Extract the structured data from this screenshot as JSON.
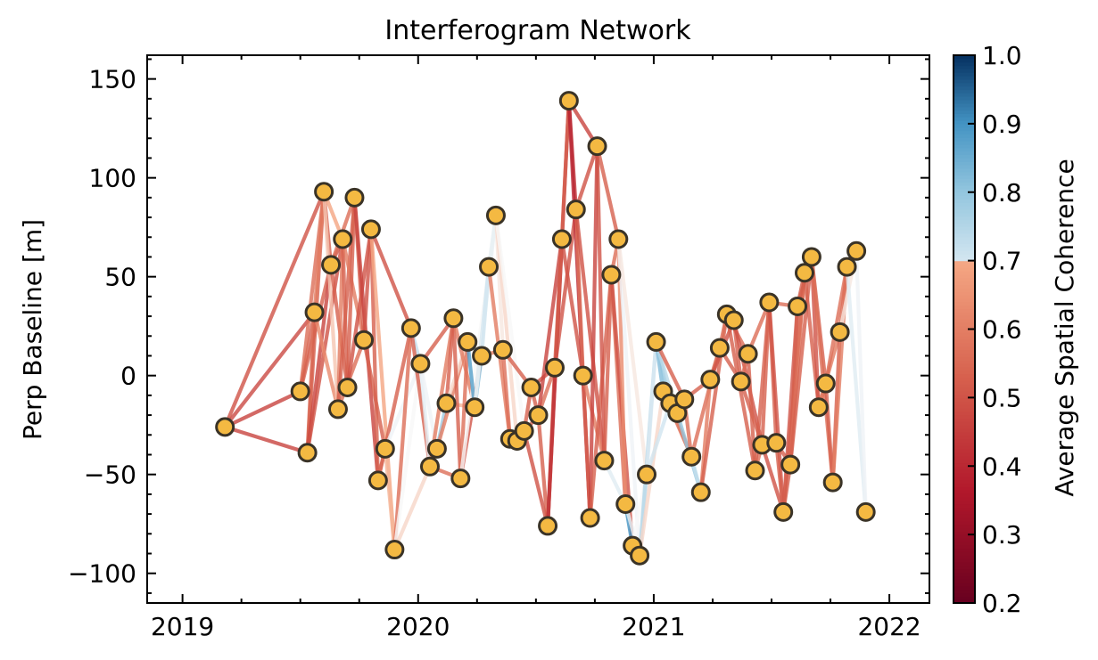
{
  "chart_data": {
    "type": "network",
    "title": "Interferogram Network",
    "ylabel": "Perp Baseline [m]",
    "xlabel": "",
    "x_range": [
      2018.85,
      2022.17
    ],
    "ylim": [
      -115,
      162
    ],
    "x_ticks": [
      2019,
      2020,
      2021,
      2022
    ],
    "x_tick_labels": [
      "2019",
      "2020",
      "2021",
      "2022"
    ],
    "y_ticks": [
      150,
      100,
      50,
      0,
      -50,
      -100
    ],
    "y_tick_labels": [
      "150",
      "100",
      "50",
      "0",
      "−50",
      "−100"
    ],
    "colorbar": {
      "label": "Average Spatial Coherence",
      "range": [
        0.2,
        1.0
      ],
      "ticks": [
        1.0,
        0.9,
        0.8,
        0.7,
        0.6,
        0.5,
        0.4,
        0.3,
        0.2
      ],
      "tick_labels": [
        "1.0",
        "0.9",
        "0.8",
        "0.7",
        "0.6",
        "0.5",
        "0.4",
        "0.3",
        "0.2"
      ],
      "colormap": "RdBu",
      "discontinuity_at": 0.7
    },
    "marker_color": "#f4b942",
    "marker_edge_color": "#3a3327",
    "nodes": [
      {
        "date": 2019.18,
        "bperp": -26
      },
      {
        "date": 2019.5,
        "bperp": -8
      },
      {
        "date": 2019.53,
        "bperp": -39
      },
      {
        "date": 2019.56,
        "bperp": 32
      },
      {
        "date": 2019.6,
        "bperp": 93
      },
      {
        "date": 2019.63,
        "bperp": 56
      },
      {
        "date": 2019.66,
        "bperp": -17
      },
      {
        "date": 2019.68,
        "bperp": 69
      },
      {
        "date": 2019.7,
        "bperp": -6
      },
      {
        "date": 2019.73,
        "bperp": 90
      },
      {
        "date": 2019.77,
        "bperp": 18
      },
      {
        "date": 2019.8,
        "bperp": 74
      },
      {
        "date": 2019.83,
        "bperp": -53
      },
      {
        "date": 2019.86,
        "bperp": -37
      },
      {
        "date": 2019.9,
        "bperp": -88
      },
      {
        "date": 2019.97,
        "bperp": 24
      },
      {
        "date": 2020.01,
        "bperp": 6
      },
      {
        "date": 2020.05,
        "bperp": -46
      },
      {
        "date": 2020.08,
        "bperp": -37
      },
      {
        "date": 2020.12,
        "bperp": -14
      },
      {
        "date": 2020.15,
        "bperp": 29
      },
      {
        "date": 2020.18,
        "bperp": -52
      },
      {
        "date": 2020.21,
        "bperp": 17
      },
      {
        "date": 2020.24,
        "bperp": -16
      },
      {
        "date": 2020.27,
        "bperp": 10
      },
      {
        "date": 2020.3,
        "bperp": 55
      },
      {
        "date": 2020.33,
        "bperp": 81
      },
      {
        "date": 2020.36,
        "bperp": 13
      },
      {
        "date": 2020.39,
        "bperp": -32
      },
      {
        "date": 2020.42,
        "bperp": -33
      },
      {
        "date": 2020.45,
        "bperp": -28
      },
      {
        "date": 2020.48,
        "bperp": -6
      },
      {
        "date": 2020.51,
        "bperp": -20
      },
      {
        "date": 2020.55,
        "bperp": -76
      },
      {
        "date": 2020.58,
        "bperp": 4
      },
      {
        "date": 2020.61,
        "bperp": 69
      },
      {
        "date": 2020.64,
        "bperp": 139
      },
      {
        "date": 2020.67,
        "bperp": 84
      },
      {
        "date": 2020.7,
        "bperp": 0
      },
      {
        "date": 2020.73,
        "bperp": -72
      },
      {
        "date": 2020.76,
        "bperp": 116
      },
      {
        "date": 2020.79,
        "bperp": -43
      },
      {
        "date": 2020.82,
        "bperp": 51
      },
      {
        "date": 2020.85,
        "bperp": 69
      },
      {
        "date": 2020.88,
        "bperp": -65
      },
      {
        "date": 2020.91,
        "bperp": -86
      },
      {
        "date": 2020.94,
        "bperp": -91
      },
      {
        "date": 2020.97,
        "bperp": -50
      },
      {
        "date": 2021.01,
        "bperp": 17
      },
      {
        "date": 2021.04,
        "bperp": -8
      },
      {
        "date": 2021.07,
        "bperp": -14
      },
      {
        "date": 2021.1,
        "bperp": -19
      },
      {
        "date": 2021.13,
        "bperp": -12
      },
      {
        "date": 2021.16,
        "bperp": -41
      },
      {
        "date": 2021.2,
        "bperp": -59
      },
      {
        "date": 2021.24,
        "bperp": -2
      },
      {
        "date": 2021.28,
        "bperp": 14
      },
      {
        "date": 2021.31,
        "bperp": 31
      },
      {
        "date": 2021.34,
        "bperp": 28
      },
      {
        "date": 2021.37,
        "bperp": -3
      },
      {
        "date": 2021.4,
        "bperp": 11
      },
      {
        "date": 2021.43,
        "bperp": -48
      },
      {
        "date": 2021.46,
        "bperp": -35
      },
      {
        "date": 2021.49,
        "bperp": 37
      },
      {
        "date": 2021.52,
        "bperp": -34
      },
      {
        "date": 2021.55,
        "bperp": -69
      },
      {
        "date": 2021.58,
        "bperp": -45
      },
      {
        "date": 2021.61,
        "bperp": 35
      },
      {
        "date": 2021.64,
        "bperp": 52
      },
      {
        "date": 2021.67,
        "bperp": 60
      },
      {
        "date": 2021.7,
        "bperp": -16
      },
      {
        "date": 2021.73,
        "bperp": -4
      },
      {
        "date": 2021.76,
        "bperp": -54
      },
      {
        "date": 2021.79,
        "bperp": 22
      },
      {
        "date": 2021.82,
        "bperp": 55
      },
      {
        "date": 2021.86,
        "bperp": 63
      },
      {
        "date": 2021.9,
        "bperp": -69
      }
    ],
    "edges": [
      [
        0,
        1,
        0.36
      ],
      [
        0,
        2,
        0.36
      ],
      [
        0,
        3,
        0.37
      ],
      [
        0,
        4,
        0.38
      ],
      [
        1,
        3,
        0.4
      ],
      [
        1,
        4,
        0.42
      ],
      [
        1,
        5,
        0.4
      ],
      [
        2,
        3,
        0.42
      ],
      [
        2,
        4,
        0.4
      ],
      [
        2,
        5,
        0.36
      ],
      [
        2,
        7,
        0.38
      ],
      [
        3,
        4,
        0.44
      ],
      [
        3,
        6,
        0.46
      ],
      [
        4,
        5,
        0.4
      ],
      [
        4,
        6,
        0.54
      ],
      [
        4,
        7,
        0.5
      ],
      [
        5,
        7,
        0.38
      ],
      [
        5,
        8,
        0.4
      ],
      [
        5,
        9,
        0.42
      ],
      [
        6,
        7,
        0.44
      ],
      [
        6,
        9,
        0.4
      ],
      [
        6,
        10,
        0.42
      ],
      [
        7,
        8,
        0.4
      ],
      [
        7,
        10,
        0.44
      ],
      [
        8,
        9,
        0.4
      ],
      [
        8,
        11,
        0.38
      ],
      [
        9,
        10,
        0.4
      ],
      [
        9,
        12,
        0.36
      ],
      [
        10,
        11,
        0.38
      ],
      [
        10,
        13,
        0.4
      ],
      [
        11,
        12,
        0.4
      ],
      [
        11,
        14,
        0.5
      ],
      [
        11,
        15,
        0.38
      ],
      [
        12,
        13,
        0.46
      ],
      [
        12,
        15,
        0.4
      ],
      [
        13,
        14,
        0.52
      ],
      [
        13,
        16,
        0.62
      ],
      [
        14,
        15,
        0.42
      ],
      [
        14,
        16,
        0.6
      ],
      [
        14,
        17,
        0.56
      ],
      [
        15,
        16,
        0.72
      ],
      [
        15,
        17,
        0.4
      ],
      [
        16,
        17,
        0.65
      ],
      [
        16,
        18,
        0.62
      ],
      [
        16,
        20,
        0.4
      ],
      [
        17,
        18,
        0.8
      ],
      [
        17,
        20,
        0.44
      ],
      [
        17,
        21,
        0.42
      ],
      [
        18,
        19,
        0.78
      ],
      [
        18,
        22,
        0.44
      ],
      [
        19,
        20,
        0.4
      ],
      [
        19,
        22,
        0.56
      ],
      [
        19,
        23,
        0.52
      ],
      [
        20,
        21,
        0.4
      ],
      [
        20,
        23,
        0.44
      ],
      [
        21,
        22,
        0.42
      ],
      [
        21,
        24,
        0.38
      ],
      [
        21,
        26,
        0.6
      ],
      [
        22,
        23,
        0.88
      ],
      [
        22,
        24,
        0.86
      ],
      [
        23,
        24,
        0.82
      ],
      [
        23,
        25,
        0.7
      ],
      [
        23,
        26,
        0.64
      ],
      [
        24,
        25,
        0.7
      ],
      [
        24,
        27,
        0.44
      ],
      [
        25,
        26,
        0.64
      ],
      [
        25,
        28,
        0.44
      ],
      [
        26,
        27,
        0.58
      ],
      [
        26,
        29,
        0.56
      ],
      [
        26,
        30,
        0.6
      ],
      [
        27,
        28,
        0.42
      ],
      [
        27,
        31,
        0.4
      ],
      [
        28,
        29,
        0.44
      ],
      [
        28,
        30,
        0.4
      ],
      [
        29,
        30,
        0.44
      ],
      [
        29,
        32,
        0.4
      ],
      [
        30,
        31,
        0.4
      ],
      [
        30,
        33,
        0.38
      ],
      [
        31,
        32,
        0.4
      ],
      [
        31,
        34,
        0.38
      ],
      [
        32,
        33,
        0.4
      ],
      [
        32,
        34,
        0.42
      ],
      [
        32,
        35,
        0.36
      ],
      [
        33,
        34,
        0.4
      ],
      [
        33,
        35,
        0.36
      ],
      [
        33,
        36,
        0.34
      ],
      [
        34,
        35,
        0.4
      ],
      [
        34,
        37,
        0.38
      ],
      [
        35,
        36,
        0.4
      ],
      [
        35,
        38,
        0.38
      ],
      [
        36,
        37,
        0.34
      ],
      [
        36,
        39,
        0.32
      ],
      [
        36,
        40,
        0.36
      ],
      [
        37,
        38,
        0.42
      ],
      [
        37,
        40,
        0.38
      ],
      [
        37,
        41,
        0.38
      ],
      [
        38,
        39,
        0.4
      ],
      [
        38,
        41,
        0.44
      ],
      [
        39,
        40,
        0.36
      ],
      [
        39,
        42,
        0.4
      ],
      [
        40,
        41,
        0.38
      ],
      [
        40,
        43,
        0.4
      ],
      [
        41,
        42,
        0.4
      ],
      [
        41,
        44,
        0.66
      ],
      [
        42,
        43,
        0.42
      ],
      [
        42,
        44,
        0.42
      ],
      [
        42,
        45,
        0.38
      ],
      [
        43,
        44,
        0.46
      ],
      [
        43,
        46,
        0.62
      ],
      [
        43,
        47,
        0.58
      ],
      [
        44,
        45,
        0.9
      ],
      [
        44,
        46,
        0.64
      ],
      [
        45,
        46,
        0.82
      ],
      [
        45,
        47,
        0.6
      ],
      [
        46,
        47,
        0.72
      ],
      [
        46,
        48,
        0.74
      ],
      [
        46,
        49,
        0.56
      ],
      [
        47,
        48,
        0.68
      ],
      [
        47,
        50,
        0.7
      ],
      [
        48,
        49,
        0.82
      ],
      [
        48,
        50,
        0.8
      ],
      [
        48,
        51,
        0.74
      ],
      [
        48,
        52,
        0.4
      ],
      [
        49,
        50,
        0.86
      ],
      [
        49,
        51,
        0.74
      ],
      [
        49,
        53,
        0.42
      ],
      [
        50,
        51,
        0.84
      ],
      [
        50,
        53,
        0.44
      ],
      [
        51,
        52,
        0.4
      ],
      [
        51,
        54,
        0.8
      ],
      [
        52,
        53,
        0.42
      ],
      [
        52,
        55,
        0.4
      ],
      [
        53,
        54,
        0.72
      ],
      [
        53,
        56,
        0.42
      ],
      [
        54,
        55,
        0.44
      ],
      [
        54,
        57,
        0.4
      ],
      [
        55,
        56,
        0.42
      ],
      [
        55,
        58,
        0.38
      ],
      [
        56,
        57,
        0.42
      ],
      [
        56,
        59,
        0.4
      ],
      [
        57,
        58,
        0.4
      ],
      [
        57,
        60,
        0.42
      ],
      [
        57,
        61,
        0.4
      ],
      [
        58,
        59,
        0.4
      ],
      [
        58,
        62,
        0.38
      ],
      [
        59,
        60,
        0.42
      ],
      [
        59,
        62,
        0.4
      ],
      [
        60,
        61,
        0.4
      ],
      [
        60,
        63,
        0.42
      ],
      [
        61,
        62,
        0.42
      ],
      [
        61,
        63,
        0.4
      ],
      [
        62,
        63,
        0.4
      ],
      [
        62,
        64,
        0.42
      ],
      [
        62,
        65,
        0.38
      ],
      [
        63,
        64,
        0.4
      ],
      [
        63,
        65,
        0.38
      ],
      [
        63,
        67,
        0.42
      ],
      [
        64,
        65,
        0.4
      ],
      [
        64,
        66,
        0.4
      ],
      [
        65,
        66,
        0.4
      ],
      [
        65,
        67,
        0.38
      ],
      [
        65,
        68,
        0.4
      ],
      [
        66,
        67,
        0.4
      ],
      [
        66,
        68,
        0.42
      ],
      [
        66,
        69,
        0.4
      ],
      [
        67,
        68,
        0.4
      ],
      [
        67,
        69,
        0.4
      ],
      [
        68,
        69,
        0.42
      ],
      [
        68,
        70,
        0.4
      ],
      [
        69,
        70,
        0.38
      ],
      [
        69,
        71,
        0.4
      ],
      [
        69,
        72,
        0.42
      ],
      [
        70,
        71,
        0.4
      ],
      [
        70,
        73,
        0.44
      ],
      [
        71,
        72,
        0.4
      ],
      [
        71,
        74,
        0.42
      ],
      [
        72,
        73,
        0.4
      ],
      [
        72,
        74,
        0.44
      ],
      [
        73,
        74,
        0.42
      ],
      [
        73,
        75,
        0.58
      ],
      [
        74,
        75,
        0.78
      ],
      [
        74,
        76,
        0.66
      ],
      [
        75,
        76,
        0.62
      ]
    ]
  }
}
